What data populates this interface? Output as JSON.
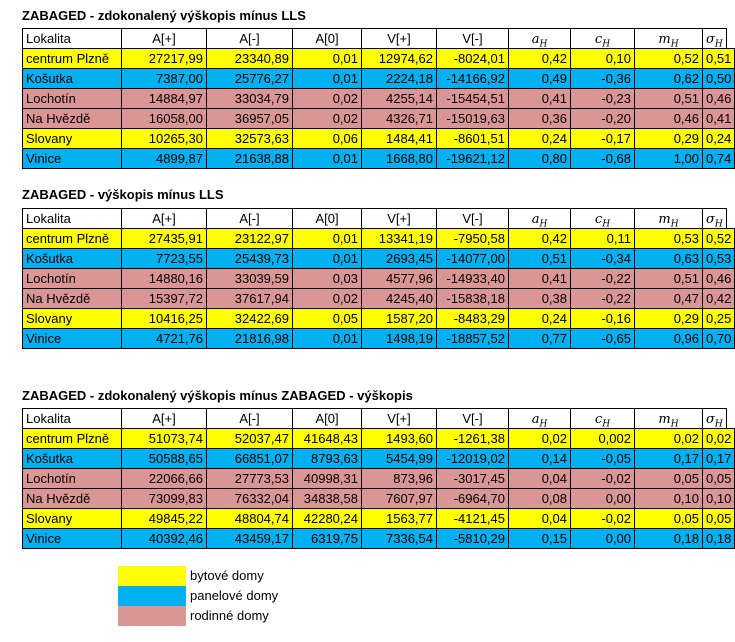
{
  "tables": [
    {
      "title": "ZABAGED - zdokonalený výškopis mínus LLS",
      "header": [
        "Lokalita",
        "A[+]",
        "A[-]",
        "A[0]",
        "V[+]",
        "V[-]",
        {
          "base": "a",
          "sub": "H"
        },
        {
          "base": "c",
          "sub": "H"
        },
        {
          "base": "m",
          "sub": "H"
        },
        {
          "base": "σ",
          "sub": "H"
        }
      ],
      "rows": [
        {
          "color": "#ffff00",
          "cells": [
            "centrum Plzně",
            "27217,99",
            "23340,89",
            "0,01",
            "12974,62",
            "-8024,01",
            "0,42",
            "0,10",
            "0,52",
            "0,51"
          ]
        },
        {
          "color": "#00b0f0",
          "cells": [
            "Košutka",
            "7387,00",
            "25776,27",
            "0,01",
            "2224,18",
            "-14166,92",
            "0,49",
            "-0,36",
            "0,62",
            "0,50"
          ]
        },
        {
          "color": "#da9694",
          "cells": [
            "Lochotín",
            "14884,97",
            "33034,79",
            "0,02",
            "4255,14",
            "-15454,51",
            "0,41",
            "-0,23",
            "0,51",
            "0,46"
          ]
        },
        {
          "color": "#da9694",
          "cells": [
            "Na Hvězdě",
            "16058,00",
            "36957,05",
            "0,02",
            "4326,71",
            "-15019,63",
            "0,36",
            "-0,20",
            "0,46",
            "0,41"
          ]
        },
        {
          "color": "#ffff00",
          "cells": [
            "Slovany",
            "10265,30",
            "32573,63",
            "0,06",
            "1484,41",
            "-8601,51",
            "0,24",
            "-0,17",
            "0,29",
            "0,24"
          ]
        },
        {
          "color": "#00b0f0",
          "cells": [
            "Vinice",
            "4899,87",
            "21638,88",
            "0,01",
            "1668,80",
            "-19621,12",
            "0,80",
            "-0,68",
            "1,00",
            "0,74"
          ]
        }
      ]
    },
    {
      "title": "ZABAGED - výškopis mínus LLS",
      "header": [
        "Lokalita",
        "A[+]",
        "A[-]",
        "A[0]",
        "V[+]",
        "V[-]",
        {
          "base": "a",
          "sub": "H"
        },
        {
          "base": "c",
          "sub": "H"
        },
        {
          "base": "m",
          "sub": "H"
        },
        {
          "base": "σ",
          "sub": "H"
        }
      ],
      "rows": [
        {
          "color": "#ffff00",
          "cells": [
            "centrum Plzně",
            "27435,91",
            "23122,97",
            "0,01",
            "13341,19",
            "-7950,58",
            "0,42",
            "0,11",
            "0,53",
            "0,52"
          ]
        },
        {
          "color": "#00b0f0",
          "cells": [
            "Košutka",
            "7723,55",
            "25439,73",
            "0,01",
            "2693,45",
            "-14077,00",
            "0,51",
            "-0,34",
            "0,63",
            "0,53"
          ]
        },
        {
          "color": "#da9694",
          "cells": [
            "Lochotín",
            "14880,16",
            "33039,59",
            "0,03",
            "4577,96",
            "-14933,40",
            "0,41",
            "-0,22",
            "0,51",
            "0,46"
          ]
        },
        {
          "color": "#da9694",
          "cells": [
            "Na Hvězdě",
            "15397,72",
            "37617,94",
            "0,02",
            "4245,40",
            "-15838,18",
            "0,38",
            "-0,22",
            "0,47",
            "0,42"
          ]
        },
        {
          "color": "#ffff00",
          "cells": [
            "Slovany",
            "10416,25",
            "32422,69",
            "0,05",
            "1587,20",
            "-8483,29",
            "0,24",
            "-0,16",
            "0,29",
            "0,25"
          ]
        },
        {
          "color": "#00b0f0",
          "cells": [
            "Vinice",
            "4721,76",
            "21816,98",
            "0,01",
            "1498,19",
            "-18857,52",
            "0,77",
            "-0,65",
            "0,96",
            "0,70"
          ]
        }
      ]
    },
    {
      "title": "ZABAGED - zdokonalený výškopis mínus ZABAGED - výškopis",
      "header": [
        "Lokalita",
        "A[+]",
        "A[-]",
        "A[0]",
        "V[+]",
        "V[-]",
        {
          "base": "a",
          "sub": "H"
        },
        {
          "base": "c",
          "sub": "H"
        },
        {
          "base": "m",
          "sub": "H"
        },
        {
          "base": "σ",
          "sub": "H"
        }
      ],
      "rows": [
        {
          "color": "#ffff00",
          "cells": [
            "centrum Plzně",
            "51073,74",
            "52037,47",
            "41648,43",
            "1493,60",
            "-1261,38",
            "0,02",
            "0,002",
            "0,02",
            "0,02"
          ]
        },
        {
          "color": "#00b0f0",
          "cells": [
            "Košutka",
            "50588,65",
            "66851,07",
            "8793,63",
            "5454,99",
            "-12019,02",
            "0,14",
            "-0,05",
            "0,17",
            "0,17"
          ]
        },
        {
          "color": "#da9694",
          "cells": [
            "Lochotín",
            "22066,66",
            "27773,53",
            "40998,31",
            "873,96",
            "-3017,45",
            "0,04",
            "-0,02",
            "0,05",
            "0,05"
          ]
        },
        {
          "color": "#da9694",
          "cells": [
            "Na Hvězdě",
            "73099,83",
            "76332,04",
            "34838,58",
            "7607,97",
            "-6964,70",
            "0,08",
            "0,00",
            "0,10",
            "0,10"
          ]
        },
        {
          "color": "#ffff00",
          "cells": [
            "Slovany",
            "49845,22",
            "48804,74",
            "42280,24",
            "1563,77",
            "-4121,45",
            "0,04",
            "-0,02",
            "0,05",
            "0,05"
          ]
        },
        {
          "color": "#00b0f0",
          "cells": [
            "Vinice",
            "40392,46",
            "43459,17",
            "6319,75",
            "7336,54",
            "-5810,29",
            "0,15",
            "0,00",
            "0,18",
            "0,18"
          ]
        }
      ]
    }
  ],
  "legend": [
    {
      "color": "#ffff00",
      "label": "bytové domy"
    },
    {
      "color": "#00b0f0",
      "label": "panelové domy"
    },
    {
      "color": "#da9694",
      "label": "rodinné domy"
    }
  ]
}
